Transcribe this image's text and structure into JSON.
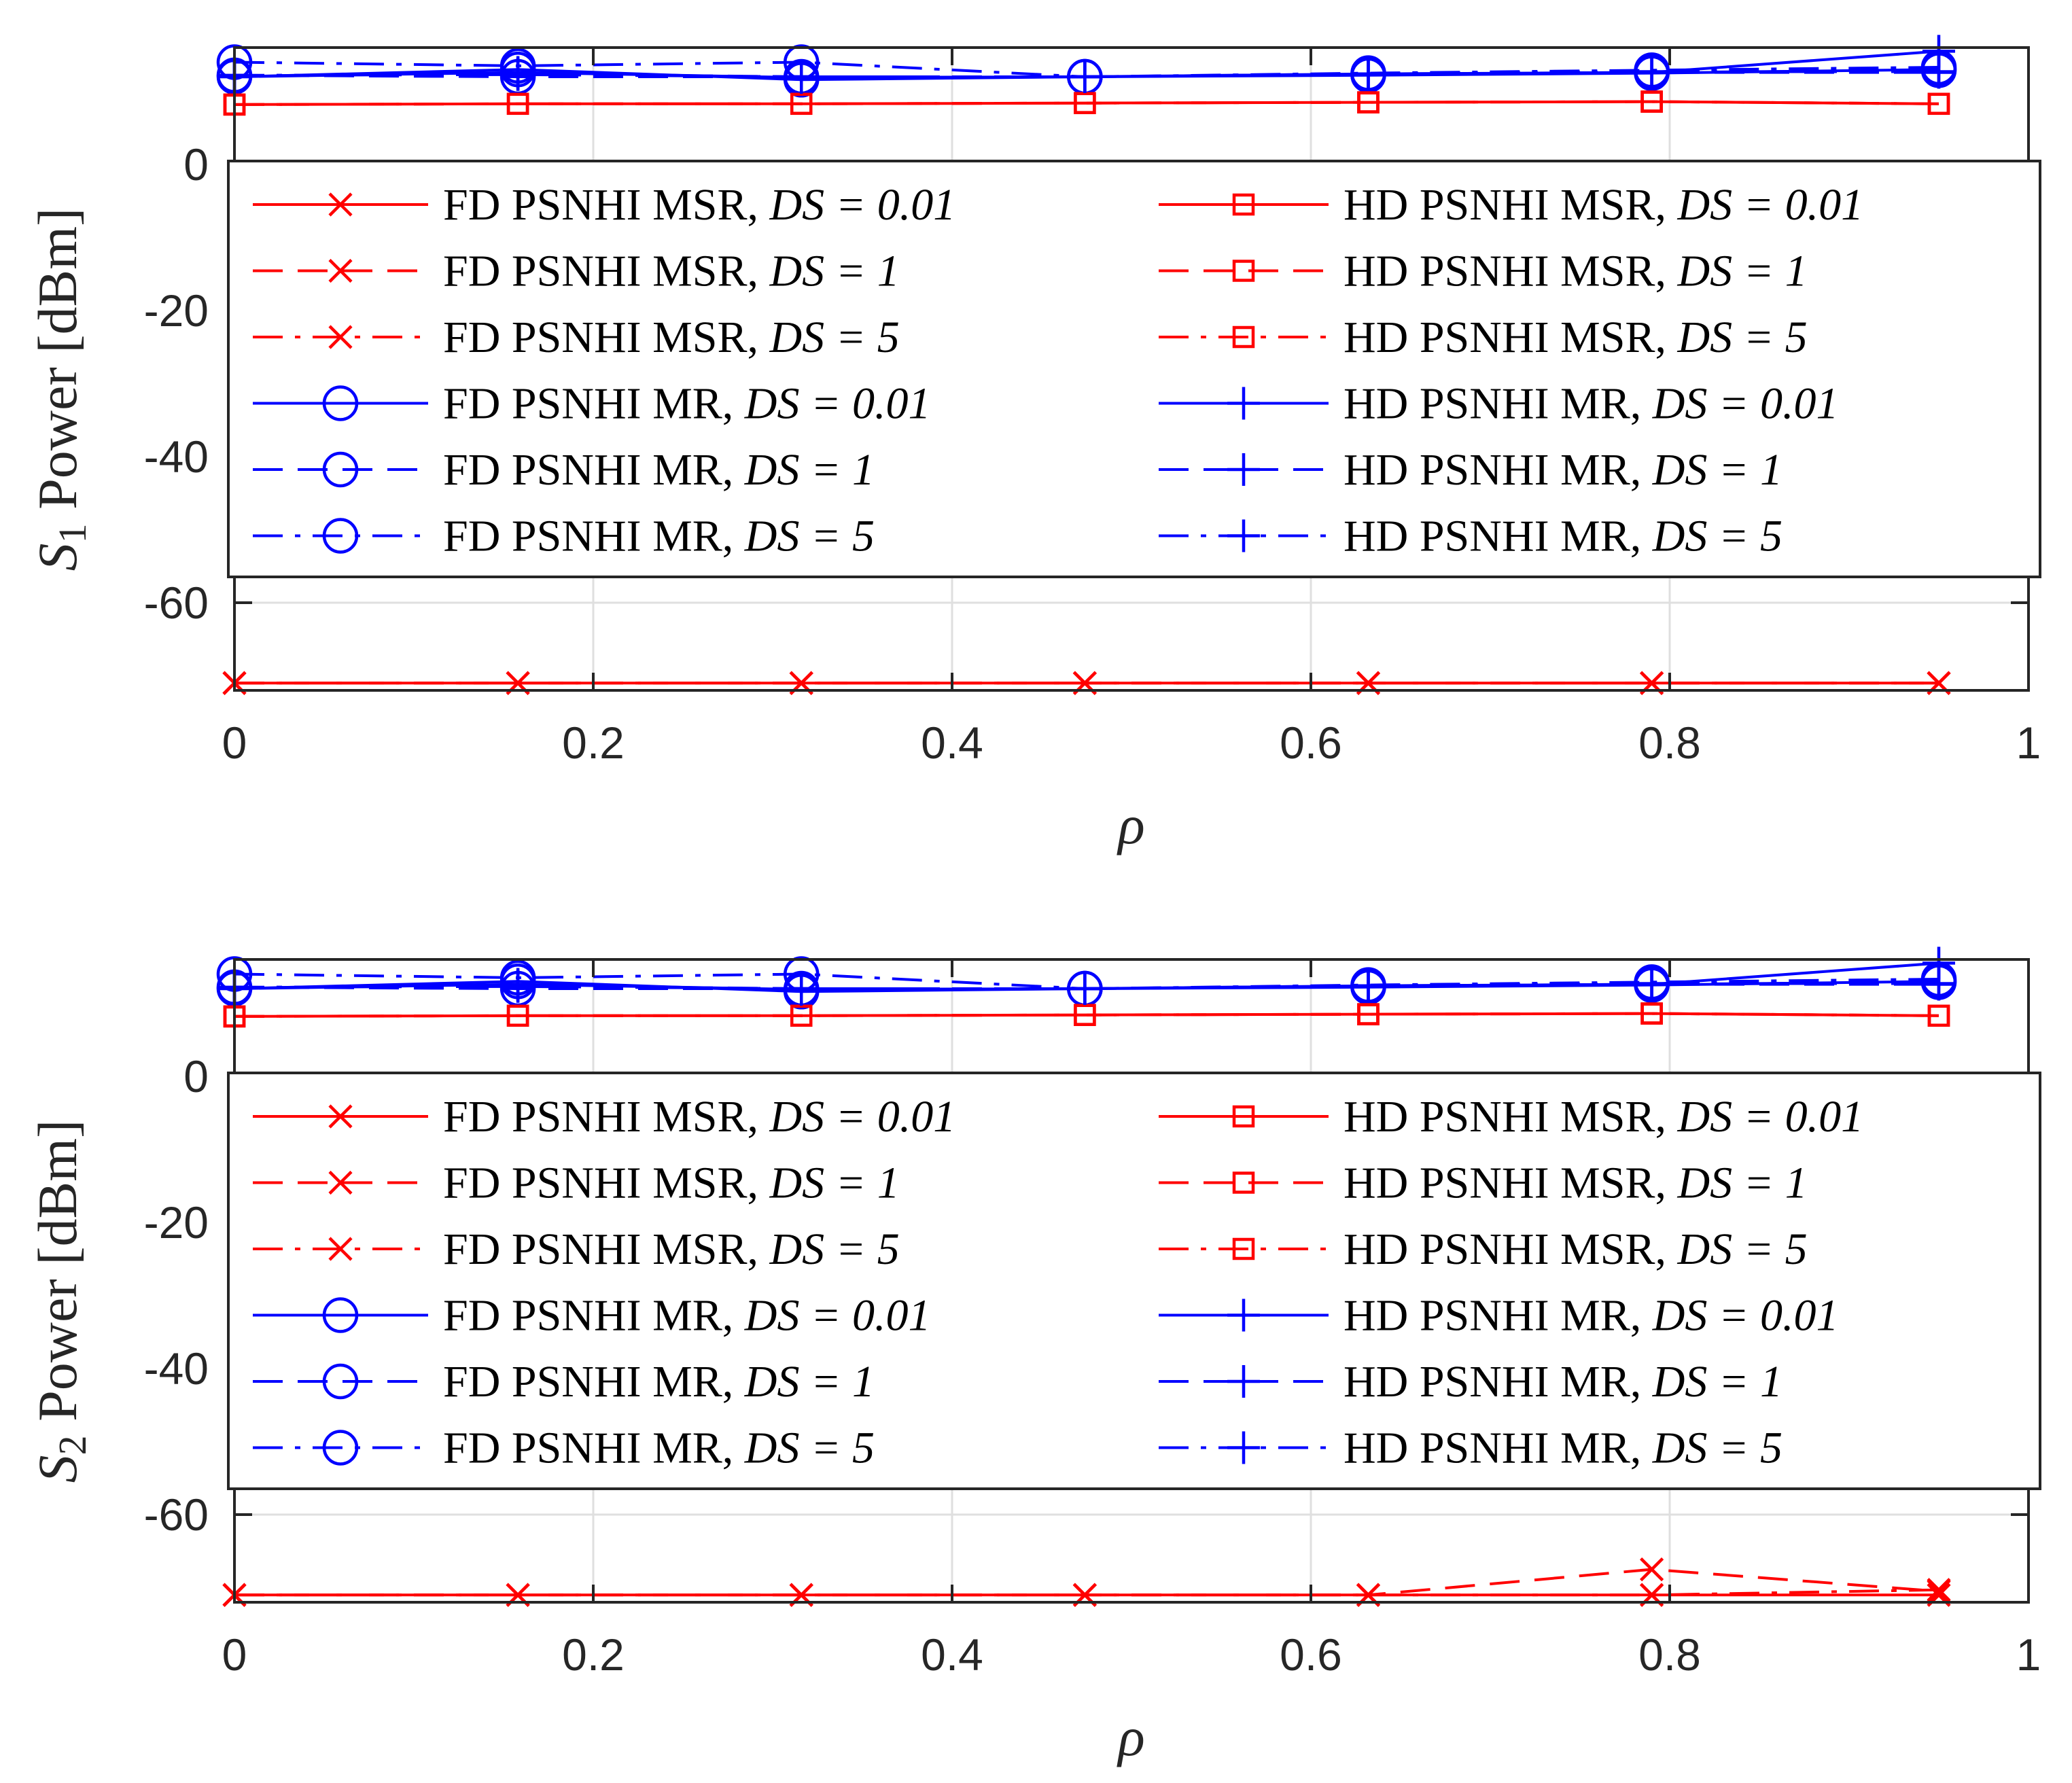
{
  "chart_data": [
    {
      "type": "line",
      "ylabel_main": "S",
      "ylabel_sub": "1",
      "ylabel_rest": " Power [dBm]",
      "xlabel": "ρ",
      "xlim": [
        0,
        1
      ],
      "ylim": [
        -72,
        16
      ],
      "xticks": [
        0,
        0.2,
        0.4,
        0.6,
        0.8,
        1
      ],
      "xtick_labels": [
        "0",
        "0.2",
        "0.4",
        "0.6",
        "0.8",
        "1"
      ],
      "yticks": [
        0,
        -20,
        -40,
        -60
      ],
      "ytick_labels": [
        "0",
        "-20",
        "-40",
        "-60"
      ],
      "grid": true,
      "legend_position": "center",
      "x": [
        0,
        0.158,
        0.316,
        0.474,
        0.632,
        0.79,
        0.95
      ],
      "series": [
        {
          "name": "FD PSNHI MSR, ",
          "ds": "DS = 0.01",
          "color": "#ff0000",
          "dash": "solid",
          "marker": "x",
          "values": [
            -71,
            -71,
            -71,
            -71,
            -71,
            -71,
            -71
          ]
        },
        {
          "name": "FD PSNHI MSR, ",
          "ds": "DS = 1",
          "color": "#ff0000",
          "dash": "dashed",
          "marker": "x",
          "values": [
            -71,
            -71,
            -71,
            -71,
            -71,
            -71,
            -71
          ]
        },
        {
          "name": "FD PSNHI MSR, ",
          "ds": "DS = 5",
          "color": "#ff0000",
          "dashdot": true,
          "dash": "dashdot",
          "marker": "x",
          "values": [
            -71,
            -71,
            -71,
            -71,
            -71,
            -71,
            -71
          ]
        },
        {
          "name": "FD PSNHI MR, ",
          "ds": "DS = 0.01",
          "color": "#0000ff",
          "dash": "solid",
          "marker": "o",
          "values": [
            12.0,
            13.0,
            11.6,
            12.0,
            12.2,
            12.5,
            13.0
          ]
        },
        {
          "name": "FD PSNHI MR, ",
          "ds": "DS = 1",
          "color": "#0000ff",
          "dash": "dashed",
          "marker": "o",
          "values": [
            12.2,
            12.0,
            12.0,
            12.0,
            12.4,
            12.6,
            12.9
          ]
        },
        {
          "name": "FD PSNHI MR, ",
          "ds": "DS = 5",
          "color": "#0000ff",
          "dash": "dashdot",
          "marker": "o",
          "values": [
            14.0,
            13.5,
            14.0,
            12.0,
            12.5,
            12.9,
            13.3
          ]
        },
        {
          "name": "HD PSNHI MSR, ",
          "ds": "DS = 0.01",
          "color": "#ff0000",
          "dash": "solid",
          "marker": "s",
          "values": [
            8.2,
            8.3,
            8.3,
            8.4,
            8.5,
            8.6,
            8.3
          ]
        },
        {
          "name": "HD PSNHI MSR, ",
          "ds": "DS = 1",
          "color": "#ff0000",
          "dash": "dashed",
          "marker": "s",
          "values": [
            8.2,
            8.3,
            8.3,
            8.4,
            8.5,
            8.6,
            8.3
          ]
        },
        {
          "name": "HD PSNHI MSR, ",
          "ds": "DS = 5",
          "color": "#ff0000",
          "dash": "dashdot",
          "marker": "s",
          "values": [
            8.2,
            8.3,
            8.3,
            8.4,
            8.5,
            8.6,
            8.3
          ]
        },
        {
          "name": "HD PSNHI MR, ",
          "ds": "DS = 0.01",
          "color": "#0000ff",
          "dash": "solid",
          "marker": "+",
          "values": [
            12.0,
            12.6,
            11.9,
            12.0,
            12.4,
            12.6,
            15.5
          ]
        },
        {
          "name": "HD PSNHI MR, ",
          "ds": "DS = 1",
          "color": "#0000ff",
          "dash": "dashed",
          "marker": "+",
          "values": [
            12.1,
            12.4,
            12.0,
            12.0,
            12.3,
            12.6,
            12.6
          ]
        },
        {
          "name": "HD PSNHI MR, ",
          "ds": "DS = 5",
          "color": "#0000ff",
          "dash": "dashdot",
          "marker": "+",
          "values": [
            12.2,
            12.3,
            12.0,
            12.0,
            12.4,
            12.7,
            12.7
          ]
        }
      ]
    },
    {
      "type": "line",
      "ylabel_main": "S",
      "ylabel_sub": "2",
      "ylabel_rest": " Power [dBm]",
      "xlabel": "ρ",
      "xlim": [
        0,
        1
      ],
      "ylim": [
        -72,
        16
      ],
      "xticks": [
        0,
        0.2,
        0.4,
        0.6,
        0.8,
        1
      ],
      "xtick_labels": [
        "0",
        "0.2",
        "0.4",
        "0.6",
        "0.8",
        "1"
      ],
      "yticks": [
        0,
        -20,
        -40,
        -60
      ],
      "ytick_labels": [
        "0",
        "-20",
        "-40",
        "-60"
      ],
      "grid": true,
      "legend_position": "center",
      "x": [
        0,
        0.158,
        0.316,
        0.474,
        0.632,
        0.79,
        0.95
      ],
      "series": [
        {
          "name": "FD PSNHI MSR, ",
          "ds": "DS = 0.01",
          "color": "#ff0000",
          "dash": "solid",
          "marker": "x",
          "values": [
            -71,
            -71,
            -71,
            -71,
            -71,
            -71,
            -71
          ]
        },
        {
          "name": "FD PSNHI MSR, ",
          "ds": "DS = 1",
          "color": "#ff0000",
          "dash": "dashed",
          "marker": "x",
          "values": [
            -71,
            -71,
            -71,
            -71,
            -71,
            -67.5,
            -70.5
          ]
        },
        {
          "name": "FD PSNHI MSR, ",
          "ds": "DS = 5",
          "color": "#ff0000",
          "dash": "dashdot",
          "marker": "x",
          "values": [
            -71,
            -71,
            -71,
            -71,
            -71,
            -71,
            -70.3
          ]
        },
        {
          "name": "FD PSNHI MR, ",
          "ds": "DS = 0.01",
          "color": "#0000ff",
          "dash": "solid",
          "marker": "o",
          "values": [
            12.0,
            13.0,
            11.6,
            12.0,
            12.2,
            12.5,
            13.0
          ]
        },
        {
          "name": "FD PSNHI MR, ",
          "ds": "DS = 1",
          "color": "#0000ff",
          "dash": "dashed",
          "marker": "o",
          "values": [
            12.2,
            12.0,
            12.0,
            12.0,
            12.4,
            12.6,
            12.9
          ]
        },
        {
          "name": "FD PSNHI MR, ",
          "ds": "DS = 5",
          "color": "#0000ff",
          "dash": "dashdot",
          "marker": "o",
          "values": [
            14.0,
            13.5,
            14.0,
            12.0,
            12.5,
            12.9,
            13.3
          ]
        },
        {
          "name": "HD PSNHI MSR, ",
          "ds": "DS = 0.01",
          "color": "#ff0000",
          "dash": "solid",
          "marker": "s",
          "values": [
            8.2,
            8.3,
            8.3,
            8.4,
            8.5,
            8.6,
            8.3
          ]
        },
        {
          "name": "HD PSNHI MSR, ",
          "ds": "DS = 1",
          "color": "#ff0000",
          "dash": "dashed",
          "marker": "s",
          "values": [
            8.2,
            8.3,
            8.3,
            8.4,
            8.5,
            8.6,
            8.3
          ]
        },
        {
          "name": "HD PSNHI MSR, ",
          "ds": "DS = 5",
          "color": "#ff0000",
          "dash": "dashdot",
          "marker": "s",
          "values": [
            8.2,
            8.3,
            8.3,
            8.4,
            8.5,
            8.6,
            8.3
          ]
        },
        {
          "name": "HD PSNHI MR, ",
          "ds": "DS = 0.01",
          "color": "#0000ff",
          "dash": "solid",
          "marker": "+",
          "values": [
            12.0,
            12.6,
            11.9,
            12.0,
            12.4,
            12.6,
            15.5
          ]
        },
        {
          "name": "HD PSNHI MR, ",
          "ds": "DS = 1",
          "color": "#0000ff",
          "dash": "dashed",
          "marker": "+",
          "values": [
            12.1,
            12.4,
            12.0,
            12.0,
            12.3,
            12.6,
            12.6
          ]
        },
        {
          "name": "HD PSNHI MR, ",
          "ds": "DS = 5",
          "color": "#0000ff",
          "dash": "dashdot",
          "marker": "+",
          "values": [
            12.2,
            12.3,
            12.0,
            12.0,
            12.4,
            12.7,
            12.7
          ]
        }
      ]
    }
  ]
}
